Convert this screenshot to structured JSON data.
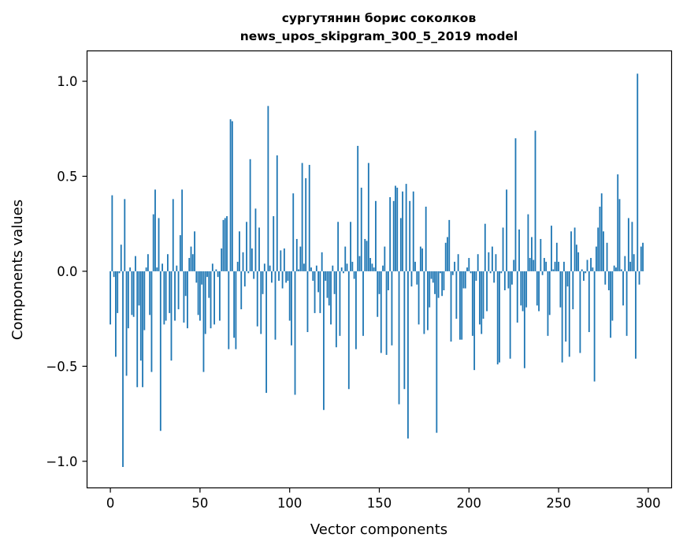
{
  "chart_data": {
    "type": "bar",
    "title": "сургутянин борис соколков",
    "subtitle": "news_upos_skipgram_300_5_2019 model",
    "xlabel": "Vector components",
    "ylabel": "Components values",
    "xlim": [
      -13,
      313
    ],
    "ylim": [
      -1.14,
      1.16
    ],
    "xticks": [
      0,
      50,
      100,
      150,
      200,
      250,
      300
    ],
    "xtick_labels": [
      "0",
      "50",
      "100",
      "150",
      "200",
      "250",
      "300"
    ],
    "yticks": [
      -1.0,
      -0.5,
      0.0,
      0.5,
      1.0
    ],
    "ytick_labels": [
      "−1.0",
      "−0.5",
      "0.0",
      "0.5",
      "1.0"
    ],
    "grid": false,
    "bar_color": "#1f77b4",
    "values": [
      -0.28,
      0.4,
      -0.03,
      -0.45,
      -0.22,
      -0.01,
      0.14,
      -1.03,
      0.38,
      -0.55,
      -0.3,
      0.02,
      -0.23,
      -0.24,
      0.08,
      -0.61,
      -0.18,
      -0.47,
      -0.61,
      -0.31,
      0.02,
      0.09,
      -0.23,
      -0.53,
      0.3,
      0.43,
      0.02,
      0.28,
      -0.84,
      0.04,
      -0.28,
      -0.26,
      0.09,
      -0.22,
      -0.47,
      0.38,
      -0.26,
      0.03,
      -0.2,
      0.19,
      0.43,
      -0.27,
      -0.13,
      -0.3,
      0.07,
      0.13,
      0.09,
      0.21,
      -0.06,
      -0.23,
      -0.26,
      -0.07,
      -0.53,
      -0.33,
      -0.03,
      -0.14,
      -0.3,
      0.04,
      -0.28,
      0.01,
      -0.03,
      -0.26,
      0.12,
      0.27,
      0.28,
      0.29,
      -0.41,
      0.8,
      0.79,
      -0.35,
      -0.41,
      0.05,
      0.21,
      -0.2,
      0.1,
      -0.08,
      0.26,
      -0.01,
      0.59,
      0.12,
      -0.04,
      0.33,
      -0.29,
      0.23,
      -0.33,
      -0.12,
      0.04,
      -0.64,
      0.87,
      0.03,
      -0.06,
      0.29,
      -0.36,
      0.61,
      -0.05,
      0.11,
      -0.09,
      0.12,
      -0.06,
      -0.05,
      -0.26,
      -0.39,
      0.41,
      -0.65,
      0.17,
      0.01,
      0.13,
      0.57,
      0.04,
      0.49,
      -0.32,
      0.56,
      0.02,
      -0.05,
      -0.22,
      0.03,
      -0.11,
      -0.22,
      0.1,
      -0.73,
      -0.05,
      -0.14,
      -0.18,
      -0.28,
      0.03,
      -0.12,
      -0.4,
      0.26,
      -0.34,
      0.02,
      -0.01,
      0.13,
      0.04,
      -0.62,
      0.26,
      0.05,
      -0.04,
      -0.41,
      0.66,
      0.08,
      0.44,
      -0.34,
      0.17,
      0.16,
      0.57,
      0.07,
      0.04,
      0.02,
      0.37,
      -0.24,
      -0.12,
      -0.43,
      0.03,
      0.13,
      -0.44,
      -0.1,
      0.39,
      -0.39,
      0.37,
      0.45,
      0.44,
      -0.7,
      0.28,
      0.42,
      -0.62,
      0.46,
      -0.88,
      0.37,
      -0.08,
      0.42,
      0.05,
      -0.07,
      -0.28,
      0.13,
      0.12,
      -0.33,
      0.34,
      -0.31,
      -0.19,
      -0.04,
      -0.06,
      -0.12,
      -0.85,
      -0.14,
      -0.01,
      -0.13,
      -0.1,
      0.15,
      0.18,
      0.27,
      -0.37,
      -0.02,
      0.05,
      -0.25,
      0.09,
      -0.36,
      -0.36,
      -0.09,
      -0.09,
      0.02,
      0.07,
      -0.01,
      -0.34,
      -0.52,
      -0.05,
      0.09,
      -0.28,
      -0.33,
      -0.25,
      0.25,
      -0.21,
      0.1,
      -0.01,
      0.13,
      -0.06,
      0.09,
      -0.49,
      -0.48,
      -0.01,
      0.23,
      -0.1,
      0.43,
      -0.09,
      -0.46,
      -0.07,
      0.06,
      0.7,
      -0.27,
      0.22,
      -0.18,
      -0.21,
      -0.51,
      -0.19,
      0.3,
      0.07,
      0.18,
      0.06,
      0.74,
      -0.18,
      -0.21,
      0.17,
      -0.02,
      0.07,
      0.05,
      -0.34,
      -0.23,
      0.24,
      0.01,
      0.05,
      0.15,
      0.05,
      -0.19,
      -0.48,
      0.05,
      -0.37,
      -0.08,
      -0.45,
      0.21,
      -0.2,
      0.23,
      0.14,
      0.1,
      -0.43,
      0.01,
      -0.05,
      -0.01,
      0.06,
      -0.32,
      0.07,
      0.02,
      -0.58,
      0.13,
      0.23,
      0.34,
      0.41,
      0.21,
      -0.07,
      0.15,
      -0.1,
      -0.35,
      -0.26,
      0.03,
      0.02,
      0.51,
      0.38,
      0.01,
      -0.18,
      0.08,
      -0.34,
      0.28,
      0.05,
      0.26,
      0.09,
      -0.46,
      1.04,
      -0.07,
      0.13,
      0.15
    ]
  }
}
